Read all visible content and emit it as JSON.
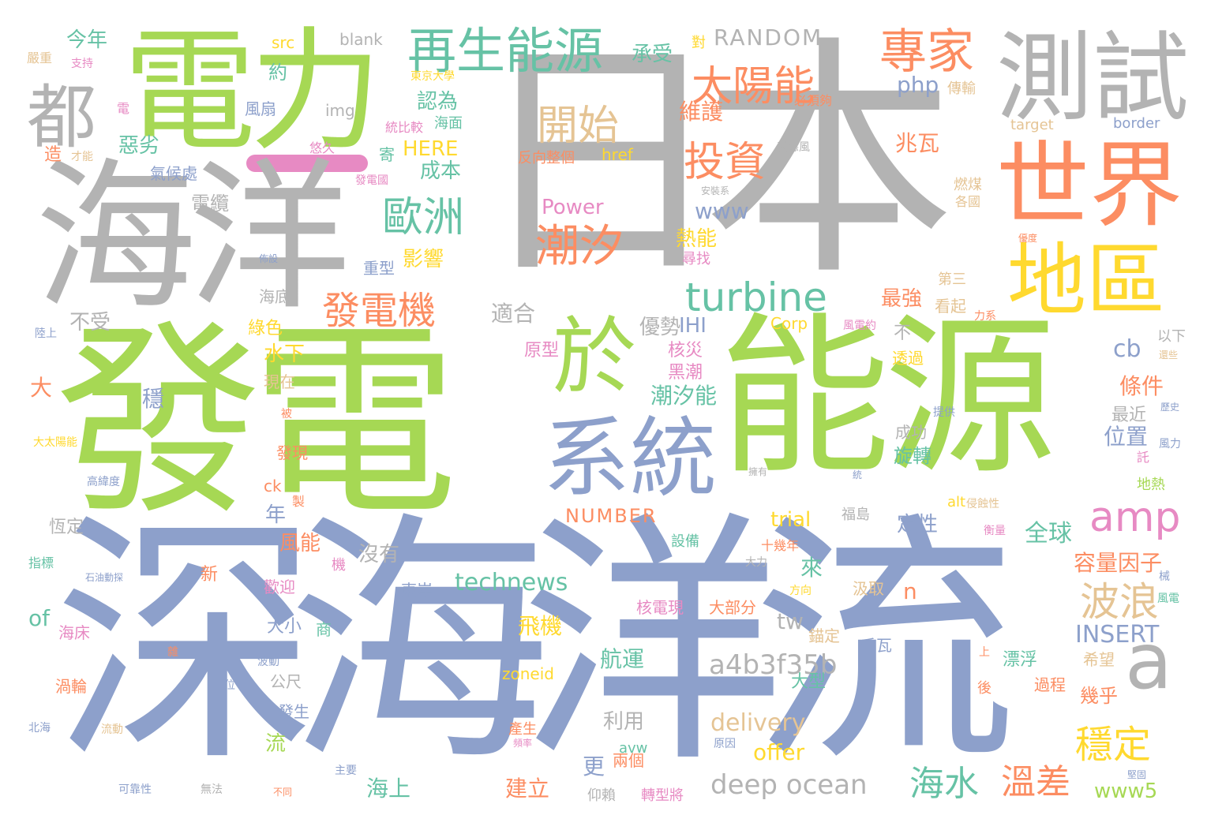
{
  "palette": {
    "green": "#a6d854",
    "gray": "#b3b3b3",
    "blue": "#8da0cb",
    "orange": "#fc8d62",
    "yellow": "#ffd92f",
    "tan": "#e5c494",
    "teal": "#66c2a5",
    "pink": "#e78ac3"
  },
  "words": [
    {
      "text": "日本",
      "c": "gray",
      "r": false
    },
    {
      "text": "發電",
      "c": "green",
      "r": false
    },
    {
      "text": "深海洋流",
      "c": "blue",
      "r": false
    },
    {
      "text": "能源",
      "c": "green",
      "r": false
    },
    {
      "text": "海洋",
      "c": "gray",
      "r": false
    },
    {
      "text": "電力",
      "c": "green",
      "r": false
    },
    {
      "text": "測試",
      "c": "gray",
      "r": false
    },
    {
      "text": "世界",
      "c": "orange",
      "r": false
    },
    {
      "text": "地區",
      "c": "yellow",
      "r": false
    },
    {
      "text": "系統",
      "c": "blue",
      "r": false
    },
    {
      "text": "於",
      "c": "green",
      "r": false
    },
    {
      "text": "a",
      "c": "gray",
      "r": false
    },
    {
      "text": "都",
      "c": "gray",
      "r": false
    },
    {
      "text": "再生能源",
      "c": "teal",
      "r": false
    },
    {
      "text": "專家",
      "c": "orange",
      "r": false
    },
    {
      "text": "太陽能",
      "c": "orange",
      "r": false
    },
    {
      "text": "開始",
      "c": "tan",
      "r": false
    },
    {
      "text": "潮汐",
      "c": "orange",
      "r": false
    },
    {
      "text": "投資",
      "c": "orange",
      "r": false
    },
    {
      "text": "歐洲",
      "c": "teal",
      "r": false
    },
    {
      "text": "turbine",
      "c": "teal",
      "r": false
    },
    {
      "text": "amp",
      "c": "pink",
      "r": false
    },
    {
      "text": "發電機",
      "c": "orange",
      "r": false
    },
    {
      "text": "波浪",
      "c": "tan",
      "r": false
    },
    {
      "text": "穩定",
      "c": "yellow",
      "r": false
    },
    {
      "text": "deep ocean",
      "c": "gray",
      "r": false
    },
    {
      "text": "海水",
      "c": "teal",
      "r": false
    },
    {
      "text": "溫差",
      "c": "orange",
      "r": false
    },
    {
      "text": "a4b3f35b",
      "c": "gray",
      "r": false
    },
    {
      "text": "technews",
      "c": "teal",
      "r": false
    },
    {
      "text": "INSERT",
      "c": "blue",
      "r": false
    },
    {
      "text": "RANDOM",
      "c": "gray",
      "r": false
    },
    {
      "text": "今年",
      "c": "teal",
      "r": false
    },
    {
      "text": "承受",
      "c": "teal",
      "r": false
    },
    {
      "text": "php",
      "c": "blue",
      "r": false
    },
    {
      "text": "維護",
      "c": "orange",
      "r": false
    },
    {
      "text": "兆瓦",
      "c": "orange",
      "r": false
    },
    {
      "text": "www",
      "c": "blue",
      "r": false
    },
    {
      "text": "熱能",
      "c": "yellow",
      "r": false
    },
    {
      "text": "影響",
      "c": "yellow",
      "r": false
    },
    {
      "text": "最強",
      "c": "orange",
      "r": false
    },
    {
      "text": "Power",
      "c": "pink",
      "r": false
    },
    {
      "text": "HERE",
      "c": "yellow",
      "r": false
    },
    {
      "text": "成本",
      "c": "teal",
      "r": false
    },
    {
      "text": "認為",
      "c": "teal",
      "r": false
    },
    {
      "text": "約",
      "c": "teal",
      "r": false
    },
    {
      "text": "惡劣",
      "c": "teal",
      "r": false
    },
    {
      "text": "氣候處",
      "c": "blue",
      "r": false
    },
    {
      "text": "風扇",
      "c": "blue",
      "r": false
    },
    {
      "text": "電纜",
      "c": "gray",
      "r": false
    },
    {
      "text": "重型",
      "c": "blue",
      "r": false
    },
    {
      "text": "海底",
      "c": "gray",
      "r": false
    },
    {
      "text": "綠色",
      "c": "yellow",
      "r": false
    },
    {
      "text": "水下",
      "c": "yellow",
      "r": false
    },
    {
      "text": "現在",
      "c": "tan",
      "r": false
    },
    {
      "text": "不受",
      "c": "gray",
      "r": false
    },
    {
      "text": "適合",
      "c": "gray",
      "r": false
    },
    {
      "text": "優勢",
      "c": "gray",
      "r": false
    },
    {
      "text": "IHI",
      "c": "blue",
      "r": false
    },
    {
      "text": "核災",
      "c": "pink",
      "r": false
    },
    {
      "text": "黑潮",
      "c": "pink",
      "r": false
    },
    {
      "text": "潮汐能",
      "c": "teal",
      "r": false
    },
    {
      "text": "原型",
      "c": "pink",
      "r": false
    },
    {
      "text": "cb",
      "c": "blue",
      "r": false
    },
    {
      "text": "條件",
      "c": "orange",
      "r": false
    },
    {
      "text": "位置",
      "c": "blue",
      "r": false
    },
    {
      "text": "最近",
      "c": "gray",
      "r": false
    },
    {
      "text": "大",
      "c": "orange",
      "r": false
    },
    {
      "text": "穩",
      "c": "blue",
      "r": false
    },
    {
      "text": "發現",
      "c": "orange",
      "r": false
    },
    {
      "text": "旋轉",
      "c": "teal",
      "r": false
    },
    {
      "text": "成功",
      "c": "gray",
      "r": false
    },
    {
      "text": "定性",
      "c": "blue",
      "r": false
    },
    {
      "text": "全球",
      "c": "teal",
      "r": false
    },
    {
      "text": "容量因子",
      "c": "orange",
      "r": false
    },
    {
      "text": "trial",
      "c": "yellow",
      "r": false
    },
    {
      "text": "NUMBER",
      "c": "orange",
      "r": false
    },
    {
      "text": "風能",
      "c": "orange",
      "r": false
    },
    {
      "text": "沒有",
      "c": "gray",
      "r": false
    },
    {
      "text": "年",
      "c": "blue",
      "r": false
    },
    {
      "text": "恆定",
      "c": "gray",
      "r": false
    },
    {
      "text": "新",
      "c": "orange",
      "r": false
    },
    {
      "text": "歡迎",
      "c": "pink",
      "r": false
    },
    {
      "text": "東岸",
      "c": "blue",
      "r": false
    },
    {
      "text": "來",
      "c": "teal",
      "r": false
    },
    {
      "text": "tw",
      "c": "gray",
      "r": false
    },
    {
      "text": "n",
      "c": "orange",
      "r": false
    },
    {
      "text": "大部分",
      "c": "orange",
      "r": false
    },
    {
      "text": "核電現",
      "c": "pink",
      "r": false
    },
    {
      "text": "汲取",
      "c": "tan",
      "r": false
    },
    {
      "text": "of",
      "c": "teal",
      "r": false
    },
    {
      "text": "海床",
      "c": "pink",
      "r": false
    },
    {
      "text": "大小",
      "c": "blue",
      "r": false
    },
    {
      "text": "商",
      "c": "teal",
      "r": false
    },
    {
      "text": "飛機",
      "c": "yellow",
      "r": false
    },
    {
      "text": "航運",
      "c": "teal",
      "r": false
    },
    {
      "text": "錨定",
      "c": "tan",
      "r": false
    },
    {
      "text": "千瓦",
      "c": "blue",
      "r": false
    },
    {
      "text": "漂浮",
      "c": "teal",
      "r": false
    },
    {
      "text": "過程",
      "c": "orange",
      "r": false
    },
    {
      "text": "希望",
      "c": "tan",
      "r": false
    },
    {
      "text": "幾乎",
      "c": "orange",
      "r": false
    },
    {
      "text": "公尺",
      "c": "gray",
      "r": false
    },
    {
      "text": "zoneid",
      "c": "yellow",
      "r": false
    },
    {
      "text": "大型",
      "c": "teal",
      "r": false
    },
    {
      "text": "渦輪",
      "c": "orange",
      "r": false
    },
    {
      "text": "發生",
      "c": "blue",
      "r": false
    },
    {
      "text": "利用",
      "c": "gray",
      "r": false
    },
    {
      "text": "delivery",
      "c": "tan",
      "r": false
    },
    {
      "text": "offer",
      "c": "yellow",
      "r": false
    },
    {
      "text": "更",
      "c": "blue",
      "r": false
    },
    {
      "text": "兩個",
      "c": "orange",
      "r": false
    },
    {
      "text": "流",
      "c": "green",
      "r": false
    },
    {
      "text": "建立",
      "c": "orange",
      "r": false
    },
    {
      "text": "海上",
      "c": "teal",
      "r": false
    },
    {
      "text": "www5",
      "c": "green",
      "r": false
    },
    {
      "text": "src",
      "c": "yellow",
      "r": false
    },
    {
      "text": "blank",
      "c": "gray",
      "r": false
    },
    {
      "text": "img",
      "c": "gray",
      "r": false
    },
    {
      "text": "href",
      "c": "yellow",
      "r": false
    },
    {
      "text": "反向整個",
      "c": "orange",
      "r": false
    },
    {
      "text": "target",
      "c": "tan",
      "r": false
    },
    {
      "text": "border",
      "c": "blue",
      "r": false
    },
    {
      "text": "Corp",
      "c": "yellow",
      "r": false
    },
    {
      "text": "ck",
      "c": "orange",
      "r": false
    },
    {
      "text": "alt",
      "c": "yellow",
      "r": false
    },
    {
      "text": "avw",
      "c": "teal",
      "r": false
    },
    {
      "text": "寄",
      "c": "teal",
      "r": false
    },
    {
      "text": "不",
      "c": "gray",
      "r": false
    },
    {
      "text": "透過",
      "c": "yellow",
      "r": false
    },
    {
      "text": "看起",
      "c": "tan",
      "r": false
    },
    {
      "text": "第三",
      "c": "tan",
      "r": false
    },
    {
      "text": "以下",
      "c": "gray",
      "r": false
    },
    {
      "text": "仰賴",
      "c": "gray",
      "r": false
    },
    {
      "text": "轉型將",
      "c": "pink",
      "r": false
    },
    {
      "text": "設備",
      "c": "teal",
      "r": false
    },
    {
      "text": "十幾年",
      "c": "orange",
      "r": false
    },
    {
      "text": "福島",
      "c": "gray",
      "r": false
    },
    {
      "text": "機",
      "c": "pink",
      "r": false
    },
    {
      "text": "尋找",
      "c": "pink",
      "r": false
    },
    {
      "text": "傳輸",
      "c": "tan",
      "r": false
    },
    {
      "text": "必須夠",
      "c": "orange",
      "r": false
    },
    {
      "text": "對",
      "c": "yellow",
      "r": false
    },
    {
      "text": "東京大學",
      "c": "yellow",
      "r": false
    },
    {
      "text": "悠久",
      "c": "pink",
      "r": false
    },
    {
      "text": "統比較",
      "c": "pink",
      "r": false
    },
    {
      "text": "海面",
      "c": "teal",
      "r": false
    },
    {
      "text": "發電國",
      "c": "pink",
      "r": false
    },
    {
      "text": "造",
      "c": "orange",
      "r": false
    },
    {
      "text": "才能",
      "c": "tan",
      "r": false
    },
    {
      "text": "電",
      "c": "pink",
      "r": false
    },
    {
      "text": "嚴重",
      "c": "tan",
      "r": false
    },
    {
      "text": "支持",
      "c": "pink",
      "r": false
    },
    {
      "text": "大太陽能",
      "c": "yellow",
      "r": false
    },
    {
      "text": "高緯度",
      "c": "blue",
      "r": false
    },
    {
      "text": "指標",
      "c": "teal",
      "r": false
    },
    {
      "text": "石油動探",
      "c": "blue",
      "r": false
    },
    {
      "text": "陸上",
      "c": "blue",
      "r": false
    },
    {
      "text": "北海",
      "c": "blue",
      "r": false
    },
    {
      "text": "流動",
      "c": "tan",
      "r": false
    },
    {
      "text": "可靠性",
      "c": "blue",
      "r": false
    },
    {
      "text": "無法",
      "c": "gray",
      "r": false
    },
    {
      "text": "主要",
      "c": "blue",
      "r": false
    },
    {
      "text": "不同",
      "c": "orange",
      "r": false
    },
    {
      "text": "且位",
      "c": "blue",
      "r": false
    },
    {
      "text": "波動",
      "c": "blue",
      "r": false
    },
    {
      "text": "產生",
      "c": "orange",
      "r": false
    },
    {
      "text": "頻率",
      "c": "pink",
      "r": false
    },
    {
      "text": "原因",
      "c": "blue",
      "r": false
    },
    {
      "text": "方向",
      "c": "yellow",
      "r": false
    },
    {
      "text": "大力",
      "c": "gray",
      "r": false
    },
    {
      "text": "後",
      "c": "orange",
      "r": false
    },
    {
      "text": "上",
      "c": "orange",
      "r": false
    },
    {
      "text": "堅固",
      "c": "blue",
      "r": false
    },
    {
      "text": "風電",
      "c": "teal",
      "r": false
    },
    {
      "text": "械",
      "c": "blue",
      "r": false
    },
    {
      "text": "衡量",
      "c": "pink",
      "r": false
    },
    {
      "text": "侵蝕性",
      "c": "tan",
      "r": false
    },
    {
      "text": "地熱",
      "c": "green",
      "r": false
    },
    {
      "text": "風力",
      "c": "blue",
      "r": false
    },
    {
      "text": "提供",
      "c": "blue",
      "r": false
    },
    {
      "text": "歷史",
      "c": "blue",
      "r": false
    },
    {
      "text": "託",
      "c": "pink",
      "r": false
    },
    {
      "text": "還些",
      "c": "tan",
      "r": false
    },
    {
      "text": "力系",
      "c": "orange",
      "r": false
    },
    {
      "text": "風電約",
      "c": "pink",
      "r": false
    },
    {
      "text": "優度",
      "c": "orange",
      "r": false
    },
    {
      "text": "燃煤",
      "c": "tan",
      "r": false
    },
    {
      "text": "各國",
      "c": "tan",
      "r": false
    },
    {
      "text": "安裝系",
      "c": "gray",
      "r": false
    },
    {
      "text": "受惡風",
      "c": "gray",
      "r": false
    },
    {
      "text": "擁有",
      "c": "gray",
      "r": false
    },
    {
      "text": "統",
      "c": "blue",
      "r": false
    },
    {
      "text": "製",
      "c": "orange",
      "r": false
    },
    {
      "text": "被",
      "c": "orange",
      "r": false
    },
    {
      "text": "雜",
      "c": "orange",
      "r": false
    },
    {
      "text": "佈設",
      "c": "blue",
      "r": false
    }
  ]
}
